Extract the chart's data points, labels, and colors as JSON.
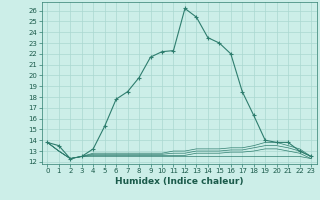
{
  "x": [
    0,
    1,
    2,
    3,
    4,
    5,
    6,
    7,
    8,
    9,
    10,
    11,
    12,
    13,
    14,
    15,
    16,
    17,
    18,
    19,
    20,
    21,
    22,
    23
  ],
  "series": [
    [
      13.8,
      13.5,
      12.3,
      12.5,
      13.2,
      15.3,
      17.8,
      18.5,
      19.8,
      21.7,
      22.2,
      22.3,
      26.2,
      25.4,
      23.5,
      23.0,
      22.0,
      18.5,
      16.3,
      14.0,
      13.8,
      13.8,
      13.0,
      12.5
    ],
    [
      13.8,
      13.0,
      12.3,
      12.5,
      12.8,
      12.8,
      12.8,
      12.8,
      12.8,
      12.8,
      12.8,
      13.0,
      13.0,
      13.2,
      13.2,
      13.2,
      13.3,
      13.3,
      13.5,
      13.8,
      13.8,
      13.5,
      13.2,
      12.5
    ],
    [
      13.8,
      13.0,
      12.3,
      12.5,
      12.7,
      12.7,
      12.7,
      12.7,
      12.7,
      12.7,
      12.7,
      12.8,
      12.8,
      13.0,
      13.0,
      13.0,
      13.1,
      13.1,
      13.3,
      13.5,
      13.5,
      13.3,
      13.0,
      12.5
    ],
    [
      13.8,
      13.0,
      12.3,
      12.5,
      12.6,
      12.6,
      12.6,
      12.6,
      12.6,
      12.6,
      12.6,
      12.6,
      12.6,
      12.8,
      12.8,
      12.8,
      12.9,
      12.9,
      13.0,
      13.2,
      13.2,
      13.0,
      12.8,
      12.3
    ],
    [
      13.8,
      13.0,
      12.3,
      12.5,
      12.5,
      12.5,
      12.5,
      12.5,
      12.5,
      12.5,
      12.5,
      12.5,
      12.5,
      12.5,
      12.5,
      12.5,
      12.5,
      12.5,
      12.5,
      12.5,
      12.5,
      12.5,
      12.5,
      12.3
    ]
  ],
  "line_color": "#2e7d6e",
  "bg_color": "#cceee8",
  "grid_color": "#aad8d0",
  "xlabel": "Humidex (Indice chaleur)",
  "xlim": [
    -0.5,
    23.5
  ],
  "ylim": [
    11.8,
    26.8
  ],
  "yticks": [
    12,
    13,
    14,
    15,
    16,
    17,
    18,
    19,
    20,
    21,
    22,
    23,
    24,
    25,
    26
  ],
  "xticks": [
    0,
    1,
    2,
    3,
    4,
    5,
    6,
    7,
    8,
    9,
    10,
    11,
    12,
    13,
    14,
    15,
    16,
    17,
    18,
    19,
    20,
    21,
    22,
    23
  ],
  "tick_fontsize": 5.0,
  "xlabel_fontsize": 6.5,
  "marker": "+"
}
